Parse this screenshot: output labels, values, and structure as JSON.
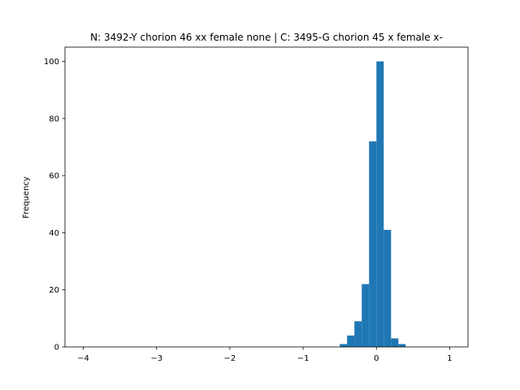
{
  "chart_data": {
    "type": "bar",
    "title": "N: 3492-Y chorion 46 xx female none | C: 3495-G chorion 45 x female x-",
    "xlabel": "",
    "ylabel": "Frequency",
    "xlim": [
      -4.25,
      1.25
    ],
    "ylim": [
      0,
      105
    ],
    "x_ticks": [
      -4,
      -3,
      -2,
      -1,
      0,
      1
    ],
    "x_tick_labels": [
      "−4",
      "−3",
      "−2",
      "−1",
      "0",
      "1"
    ],
    "y_ticks": [
      0,
      20,
      40,
      60,
      80,
      100
    ],
    "y_tick_labels": [
      "0",
      "20",
      "40",
      "60",
      "80",
      "100"
    ],
    "bar_color": "#1f77b4",
    "grid": false,
    "bins": [
      {
        "x0": -0.5,
        "x1": -0.4,
        "count": 1
      },
      {
        "x0": -0.4,
        "x1": -0.3,
        "count": 4
      },
      {
        "x0": -0.3,
        "x1": -0.2,
        "count": 9
      },
      {
        "x0": -0.2,
        "x1": -0.1,
        "count": 22
      },
      {
        "x0": -0.1,
        "x1": 0.0,
        "count": 72
      },
      {
        "x0": 0.0,
        "x1": 0.1,
        "count": 100
      },
      {
        "x0": 0.1,
        "x1": 0.2,
        "count": 41
      },
      {
        "x0": 0.2,
        "x1": 0.3,
        "count": 3
      },
      {
        "x0": 0.3,
        "x1": 0.4,
        "count": 1
      }
    ]
  }
}
